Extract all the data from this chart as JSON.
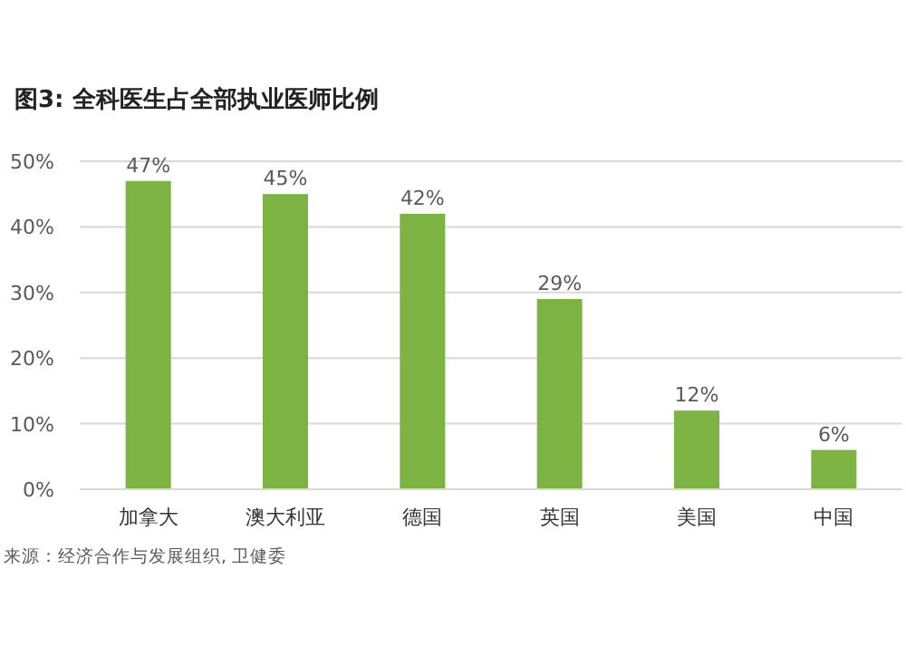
{
  "chart_data": {
    "type": "bar",
    "title": "图3: 全科医生占全部执业医师比例",
    "categories": [
      "加拿大",
      "澳大利亚",
      "德国",
      "英国",
      "美国",
      "中国"
    ],
    "values": [
      47,
      45,
      42,
      29,
      12,
      6
    ],
    "value_labels": [
      "47%",
      "45%",
      "42%",
      "29%",
      "12%",
      "6%"
    ],
    "color": "#7cb342",
    "ylim": [
      0,
      50
    ],
    "yticks": [
      {
        "value": 0,
        "label": "0%"
      },
      {
        "value": 10,
        "label": "10%"
      },
      {
        "value": 20,
        "label": "20%"
      },
      {
        "value": 30,
        "label": "30%"
      },
      {
        "value": 40,
        "label": "40%"
      },
      {
        "value": 50,
        "label": "50%"
      }
    ],
    "grid": "y",
    "annotations": [
      "来源：经济合作与发展组织, 卫健委"
    ]
  }
}
